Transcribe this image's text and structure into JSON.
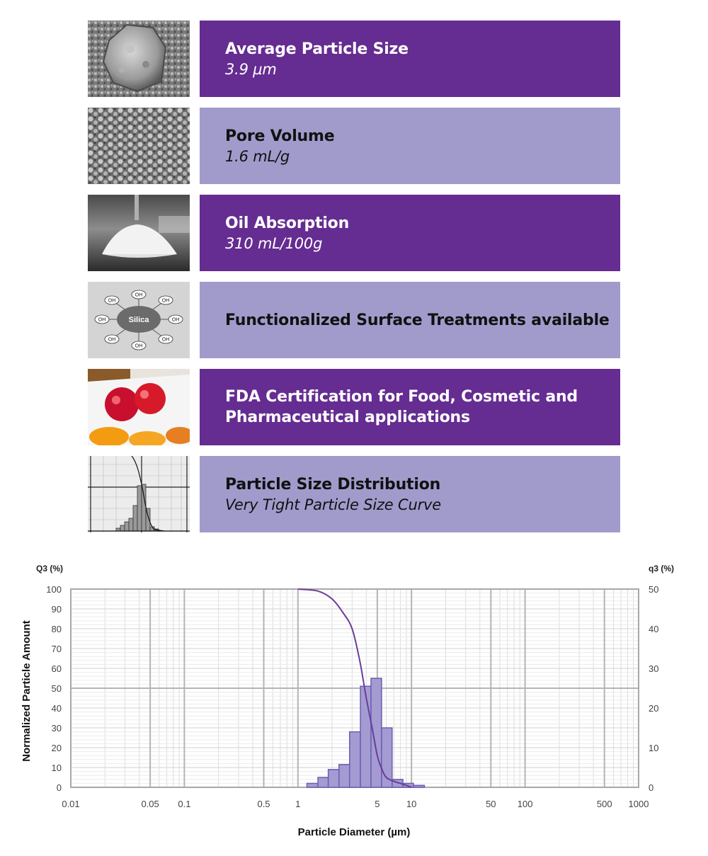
{
  "features": [
    {
      "title": "Average Particle Size",
      "value": "3.9 µm",
      "style": "dark",
      "thumbnail": "sem-particle-image"
    },
    {
      "title": "Pore Volume",
      "value": "1.6 mL/g",
      "style": "light",
      "thumbnail": "sem-surface-image"
    },
    {
      "title": "Oil Absorption",
      "value": "310 mL/100g",
      "style": "dark",
      "thumbnail": "powder-pile-image"
    },
    {
      "title": "Functionalized Surface Treatments available",
      "value": "",
      "style": "light",
      "thumbnail": "silica-oh-diagram"
    },
    {
      "title": "FDA Certification for Food, Cosmetic and Pharmaceutical applications",
      "value": "",
      "style": "dark",
      "thumbnail": "packaged-food-image"
    },
    {
      "title": "Particle Size Distribution",
      "value": "Very Tight Particle Size Curve",
      "style": "light",
      "thumbnail": "psd-chart-thumbnail"
    }
  ],
  "silica_diagram": {
    "center_label": "Silica",
    "group_label": "OH"
  },
  "colors": {
    "dark_bar": "#652c91",
    "light_bar": "#a19bcc",
    "curve": "#6a3d9a",
    "hist_fill": "#a49bd2",
    "hist_stroke": "#6c5fb0"
  },
  "chart_data": {
    "type": "bar",
    "x_scale": "log",
    "xlim": [
      0.01,
      1000
    ],
    "ylim_left": [
      0,
      100
    ],
    "ylim_right": [
      0,
      50
    ],
    "xlabel": "Particle Diameter (µm)",
    "ylabel": "Normalized Particle Amount",
    "left_axis_title": "Q3 (%)",
    "right_axis_title": "q3 (%)",
    "x_tick_labels": [
      "0.01",
      "0.05",
      "0.1",
      "0.5",
      "1",
      "5",
      "10",
      "50",
      "100",
      "500",
      "1000"
    ],
    "left_tick_labels": [
      "0",
      "10",
      "20",
      "30",
      "40",
      "50",
      "60",
      "70",
      "80",
      "90",
      "100"
    ],
    "right_tick_labels": [
      "0",
      "10",
      "20",
      "30",
      "40",
      "50"
    ],
    "grid": true,
    "series": [
      {
        "kind": "histogram",
        "axis": "left",
        "bins": [
          {
            "from": 1.2,
            "to": 1.5,
            "value": 2
          },
          {
            "from": 1.5,
            "to": 1.85,
            "value": 5
          },
          {
            "from": 1.85,
            "to": 2.3,
            "value": 9
          },
          {
            "from": 2.3,
            "to": 2.85,
            "value": 11.5
          },
          {
            "from": 2.85,
            "to": 3.55,
            "value": 28
          },
          {
            "from": 3.55,
            "to": 4.4,
            "value": 51
          },
          {
            "from": 4.4,
            "to": 5.45,
            "value": 55
          },
          {
            "from": 5.45,
            "to": 6.75,
            "value": 30
          },
          {
            "from": 6.75,
            "to": 8.4,
            "value": 4
          },
          {
            "from": 8.4,
            "to": 10.4,
            "value": 2
          },
          {
            "from": 10.4,
            "to": 13,
            "value": 1
          }
        ]
      },
      {
        "kind": "line",
        "axis": "left",
        "x": [
          1.0,
          1.5,
          2.0,
          2.5,
          3.0,
          3.5,
          4.0,
          4.5,
          5.0,
          5.5,
          6.0,
          7.0,
          8.0,
          9.0,
          10.0
        ],
        "y": [
          100,
          99,
          95,
          88,
          80,
          64,
          45,
          30,
          16,
          9,
          5,
          3,
          2,
          1,
          0
        ]
      }
    ]
  }
}
